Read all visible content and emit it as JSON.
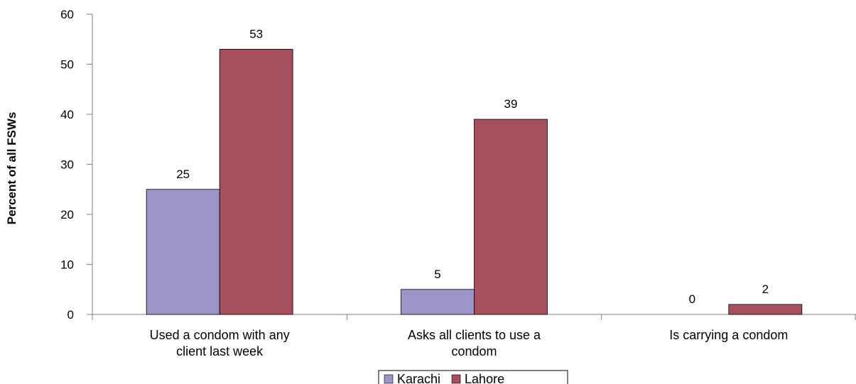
{
  "chart_data": {
    "type": "bar",
    "title": "",
    "xlabel": "",
    "ylabel": "Percent of all FSWs",
    "ylim": [
      0,
      60
    ],
    "yticks": [
      "0",
      "10",
      "20",
      "30",
      "40",
      "50",
      "60"
    ],
    "categories": [
      [
        "Used a condom with any",
        "client last week"
      ],
      [
        "Asks all clients to use a",
        "condom"
      ],
      [
        "Is carrying a condom"
      ]
    ],
    "series": [
      {
        "name": "Karachi",
        "values": [
          25,
          5,
          0
        ],
        "labels": [
          "25",
          "5",
          "0"
        ]
      },
      {
        "name": "Lahore",
        "values": [
          53,
          39,
          2
        ],
        "labels": [
          "53",
          "39",
          "2"
        ]
      }
    ],
    "legend": "bottom-center",
    "grid": false
  },
  "colors": {
    "Karachi": "#9c96c8",
    "Lahore": "#a6505e",
    "axis": "#808080",
    "bar_stroke": "#000000"
  }
}
